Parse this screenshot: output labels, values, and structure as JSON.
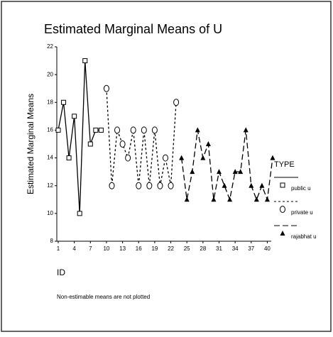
{
  "chart_data": {
    "type": "line",
    "title": "Estimated Marginal Means of U",
    "y_label": "Estimated Marginal Means",
    "x_label": "ID",
    "legend_title": "TYPE",
    "footnote": "Non-estimable means are not plotted",
    "x": [
      1,
      2,
      3,
      4,
      5,
      6,
      7,
      8,
      9,
      10,
      11,
      12,
      13,
      14,
      15,
      16,
      17,
      18,
      19,
      20,
      21,
      22,
      23,
      24,
      25,
      26,
      27,
      28,
      29,
      30,
      31,
      32,
      33,
      34,
      35,
      36,
      37,
      38,
      39,
      40,
      41
    ],
    "series": [
      {
        "name": "public u",
        "color": "#000000",
        "marker": "square",
        "line_style": "solid",
        "values": [
          16,
          18,
          14,
          17,
          10,
          21,
          15,
          16,
          16,
          null,
          null,
          null,
          null,
          null,
          null,
          null,
          null,
          null,
          null,
          null,
          null,
          null,
          null,
          null,
          null,
          null,
          null,
          null,
          null,
          null,
          null,
          null,
          null,
          null,
          null,
          null,
          null,
          null,
          null,
          null,
          null
        ]
      },
      {
        "name": "private u",
        "color": "#000000",
        "marker": "circle",
        "line_style": "dotted",
        "values": [
          null,
          null,
          null,
          null,
          null,
          null,
          null,
          null,
          null,
          19,
          12,
          16,
          15,
          14,
          16,
          12,
          16,
          12,
          16,
          12,
          14,
          12,
          18,
          null,
          null,
          null,
          null,
          null,
          null,
          null,
          null,
          null,
          null,
          null,
          null,
          null,
          null,
          null,
          null,
          null,
          null
        ]
      },
      {
        "name": "rajabhat u",
        "color": "#000000",
        "marker": "triangle",
        "line_style": "dashed",
        "values": [
          null,
          null,
          null,
          null,
          null,
          null,
          null,
          null,
          null,
          null,
          null,
          null,
          null,
          null,
          null,
          null,
          null,
          null,
          null,
          null,
          null,
          null,
          null,
          14,
          11,
          13,
          16,
          14,
          15,
          11,
          13,
          12,
          11,
          13,
          13,
          16,
          12,
          11,
          12,
          11,
          14
        ]
      }
    ],
    "xlim": [
      1,
      41
    ],
    "xticks": [
      1,
      4,
      7,
      10,
      13,
      16,
      19,
      22,
      25,
      28,
      31,
      34,
      37,
      40
    ],
    "ylim": [
      8,
      22
    ],
    "yticks": [
      8,
      10,
      12,
      14,
      16,
      18,
      20,
      22
    ],
    "legend": "right"
  }
}
